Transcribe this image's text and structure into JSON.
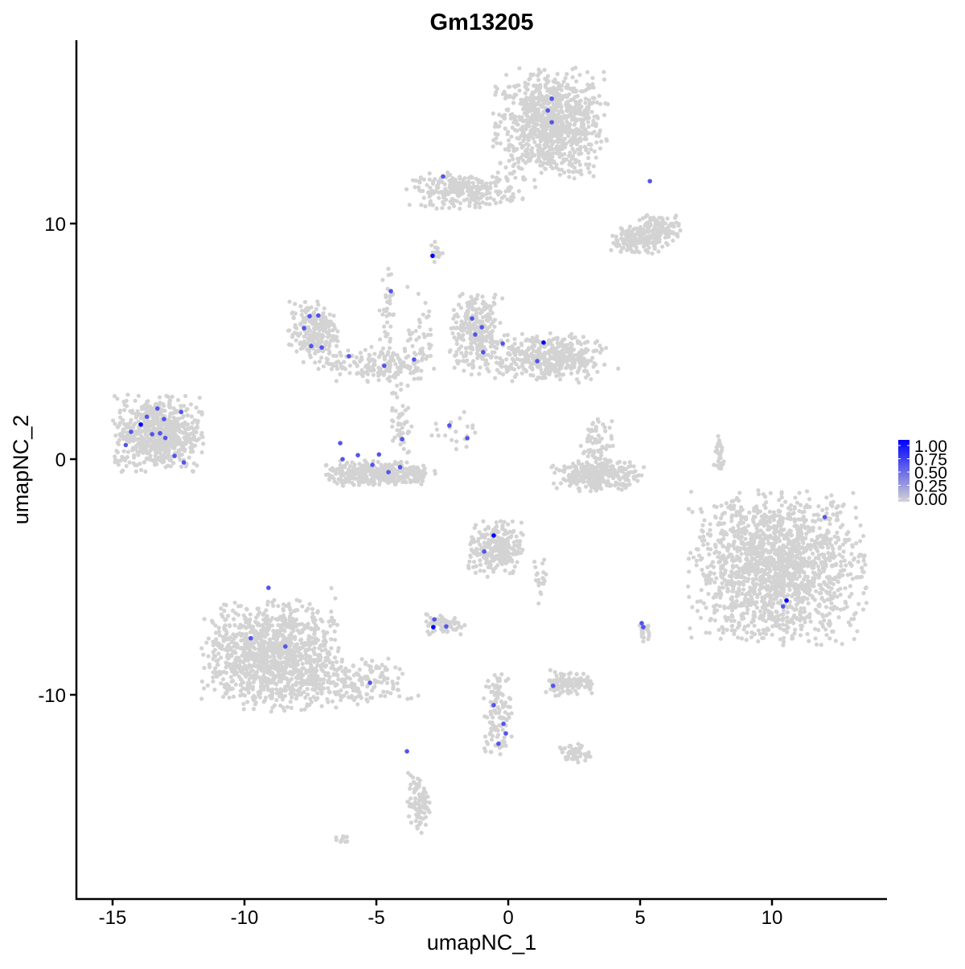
{
  "chart_data": {
    "type": "scatter",
    "title": "Gm13205",
    "xlabel": "umapNC_1",
    "ylabel": "umapNC_2",
    "xlim": [
      -16.5,
      14.2
    ],
    "ylim": [
      -18.5,
      17.8
    ],
    "xticks": [
      -15,
      -10,
      -5,
      0,
      5,
      10
    ],
    "xtick_labels": [
      "-15",
      "-10",
      "-5",
      "0",
      "5",
      "10"
    ],
    "yticks": [
      -10,
      0,
      10
    ],
    "ytick_labels": [
      "-10",
      "0",
      "10"
    ],
    "grid": false,
    "legend": {
      "placement": "right",
      "type": "colorbar",
      "low_color": "#d3d3d3",
      "high_color": "#0000ff",
      "ticks": [
        1.0,
        0.75,
        0.5,
        0.25,
        0.0
      ],
      "tick_labels": [
        "1.00",
        "0.75",
        "0.50",
        "0.25",
        "0.00"
      ]
    },
    "background_clusters": [
      {
        "cx": 1.6,
        "cy": 14.2,
        "sx": 1.0,
        "sy": 1.1,
        "n": 900
      },
      {
        "cx": -1.6,
        "cy": 11.4,
        "sx": 1.0,
        "sy": 0.35,
        "n": 260
      },
      {
        "cx": 4.8,
        "cy": 9.3,
        "sx": 0.45,
        "sy": 0.35,
        "n": 140
      },
      {
        "cx": 5.7,
        "cy": 9.7,
        "sx": 0.4,
        "sy": 0.35,
        "n": 120
      },
      {
        "cx": -13.3,
        "cy": 1.1,
        "sx": 0.8,
        "sy": 0.75,
        "n": 650
      },
      {
        "cx": -7.4,
        "cy": 5.4,
        "sx": 0.45,
        "sy": 0.6,
        "n": 220
      },
      {
        "cx": -5.0,
        "cy": 4.0,
        "sx": 1.0,
        "sy": 0.35,
        "n": 160
      },
      {
        "cx": -4.9,
        "cy": -0.6,
        "sx": 1.0,
        "sy": 0.25,
        "n": 350
      },
      {
        "cx": -1.2,
        "cy": 5.3,
        "sx": 0.5,
        "sy": 0.8,
        "n": 280
      },
      {
        "cx": 1.6,
        "cy": 4.3,
        "sx": 1.0,
        "sy": 0.5,
        "n": 400
      },
      {
        "cx": 3.4,
        "cy": -0.7,
        "sx": 0.8,
        "sy": 0.3,
        "n": 260
      },
      {
        "cx": 3.4,
        "cy": 0.5,
        "sx": 0.3,
        "sy": 0.6,
        "n": 80
      },
      {
        "cx": 10.2,
        "cy": -4.6,
        "sx": 1.55,
        "sy": 1.5,
        "n": 1600
      },
      {
        "cx": -9.0,
        "cy": -8.3,
        "sx": 1.2,
        "sy": 1.1,
        "n": 1100
      },
      {
        "cx": -6.0,
        "cy": -9.5,
        "sx": 1.2,
        "sy": 0.5,
        "n": 200
      },
      {
        "cx": -0.5,
        "cy": -3.8,
        "sx": 0.5,
        "sy": 0.55,
        "n": 260
      },
      {
        "cx": -2.4,
        "cy": -7.0,
        "sx": 0.35,
        "sy": 0.2,
        "n": 70
      },
      {
        "cx": 2.3,
        "cy": -9.5,
        "sx": 0.5,
        "sy": 0.25,
        "n": 120
      },
      {
        "cx": -0.4,
        "cy": -10.8,
        "sx": 0.25,
        "sy": 0.9,
        "n": 110
      },
      {
        "cx": 2.5,
        "cy": -12.5,
        "sx": 0.3,
        "sy": 0.2,
        "n": 50
      },
      {
        "cx": -3.4,
        "cy": -14.6,
        "sx": 0.2,
        "sy": 0.6,
        "n": 90
      },
      {
        "cx": 5.1,
        "cy": -7.3,
        "sx": 0.12,
        "sy": 0.2,
        "n": 20
      },
      {
        "cx": 8.0,
        "cy": 0.2,
        "sx": 0.1,
        "sy": 0.5,
        "n": 30
      },
      {
        "cx": -6.3,
        "cy": -16.1,
        "sx": 0.15,
        "sy": 0.1,
        "n": 10
      },
      {
        "cx": -2.7,
        "cy": 8.8,
        "sx": 0.12,
        "sy": 0.2,
        "n": 15
      },
      {
        "cx": -4.6,
        "cy": 5.5,
        "sx": 0.15,
        "sy": 1.2,
        "n": 50
      },
      {
        "cx": -3.3,
        "cy": 5.2,
        "sx": 0.25,
        "sy": 1.0,
        "n": 40
      },
      {
        "cx": -4.1,
        "cy": 1.8,
        "sx": 0.2,
        "sy": 0.9,
        "n": 50
      },
      {
        "cx": -1.8,
        "cy": 1.2,
        "sx": 0.5,
        "sy": 0.4,
        "n": 20
      },
      {
        "cx": 1.2,
        "cy": -5.1,
        "sx": 0.15,
        "sy": 0.5,
        "n": 20
      }
    ],
    "expressing_points": [
      [
        -13.93,
        1.47,
        1.0
      ],
      [
        -13.7,
        1.8,
        0.6
      ],
      [
        -13.3,
        2.15,
        0.6
      ],
      [
        -13.05,
        1.7,
        0.6
      ],
      [
        -14.3,
        1.16,
        0.6
      ],
      [
        -14.5,
        0.6,
        0.6
      ],
      [
        -12.65,
        0.14,
        0.6
      ],
      [
        -12.3,
        -0.14,
        0.6
      ],
      [
        -12.4,
        2.0,
        0.6
      ],
      [
        -13.0,
        0.9,
        0.6
      ],
      [
        -13.5,
        1.06,
        0.6
      ],
      [
        -13.2,
        1.1,
        0.6
      ],
      [
        -7.53,
        6.07,
        0.6
      ],
      [
        -7.74,
        5.56,
        0.6
      ],
      [
        -7.47,
        4.8,
        0.6
      ],
      [
        -7.2,
        6.1,
        0.6
      ],
      [
        -7.07,
        4.74,
        0.6
      ],
      [
        -6.04,
        4.37,
        0.6
      ],
      [
        -4.7,
        3.96,
        0.6
      ],
      [
        -4.45,
        7.13,
        0.6
      ],
      [
        -3.57,
        4.23,
        0.6
      ],
      [
        -4.02,
        0.85,
        0.6
      ],
      [
        -6.37,
        0.68,
        0.6
      ],
      [
        -6.28,
        0.0,
        0.6
      ],
      [
        -5.7,
        0.17,
        0.6
      ],
      [
        -5.15,
        -0.24,
        0.6
      ],
      [
        -4.9,
        0.2,
        0.6
      ],
      [
        -4.54,
        -0.55,
        0.6
      ],
      [
        -4.1,
        -0.34,
        0.6
      ],
      [
        -2.87,
        8.63,
        1.0
      ],
      [
        -1.37,
        5.97,
        0.6
      ],
      [
        -1.25,
        5.29,
        0.6
      ],
      [
        -1.0,
        5.6,
        0.6
      ],
      [
        -0.95,
        4.54,
        0.6
      ],
      [
        -0.21,
        4.91,
        0.6
      ],
      [
        1.1,
        4.16,
        0.6
      ],
      [
        1.34,
        4.95,
        1.0
      ],
      [
        -2.23,
        1.43,
        0.6
      ],
      [
        -1.55,
        0.89,
        0.6
      ],
      [
        1.65,
        15.3,
        0.6
      ],
      [
        1.5,
        14.8,
        0.6
      ],
      [
        1.65,
        14.3,
        0.6
      ],
      [
        -2.47,
        12.0,
        0.6
      ],
      [
        5.37,
        11.8,
        0.6
      ],
      [
        12.0,
        -2.46,
        0.6
      ],
      [
        10.55,
        -6.0,
        1.0
      ],
      [
        10.42,
        -6.25,
        0.6
      ],
      [
        -0.55,
        -3.24,
        1.0
      ],
      [
        -0.91,
        -3.92,
        0.6
      ],
      [
        -2.8,
        -6.8,
        0.6
      ],
      [
        -2.84,
        -7.13,
        1.0
      ],
      [
        -2.35,
        -7.1,
        0.6
      ],
      [
        -9.09,
        -5.46,
        0.6
      ],
      [
        -9.76,
        -7.6,
        0.6
      ],
      [
        -8.45,
        -7.95,
        0.6
      ],
      [
        -5.24,
        -9.49,
        0.6
      ],
      [
        -3.84,
        -12.4,
        0.6
      ],
      [
        5.12,
        -7.13,
        0.6
      ],
      [
        5.06,
        -6.96,
        0.6
      ],
      [
        1.7,
        -9.62,
        0.6
      ],
      [
        -0.55,
        -10.44,
        0.6
      ],
      [
        -0.18,
        -11.23,
        0.6
      ],
      [
        -0.09,
        -11.64,
        0.6
      ],
      [
        -0.37,
        -12.08,
        0.6
      ]
    ]
  }
}
